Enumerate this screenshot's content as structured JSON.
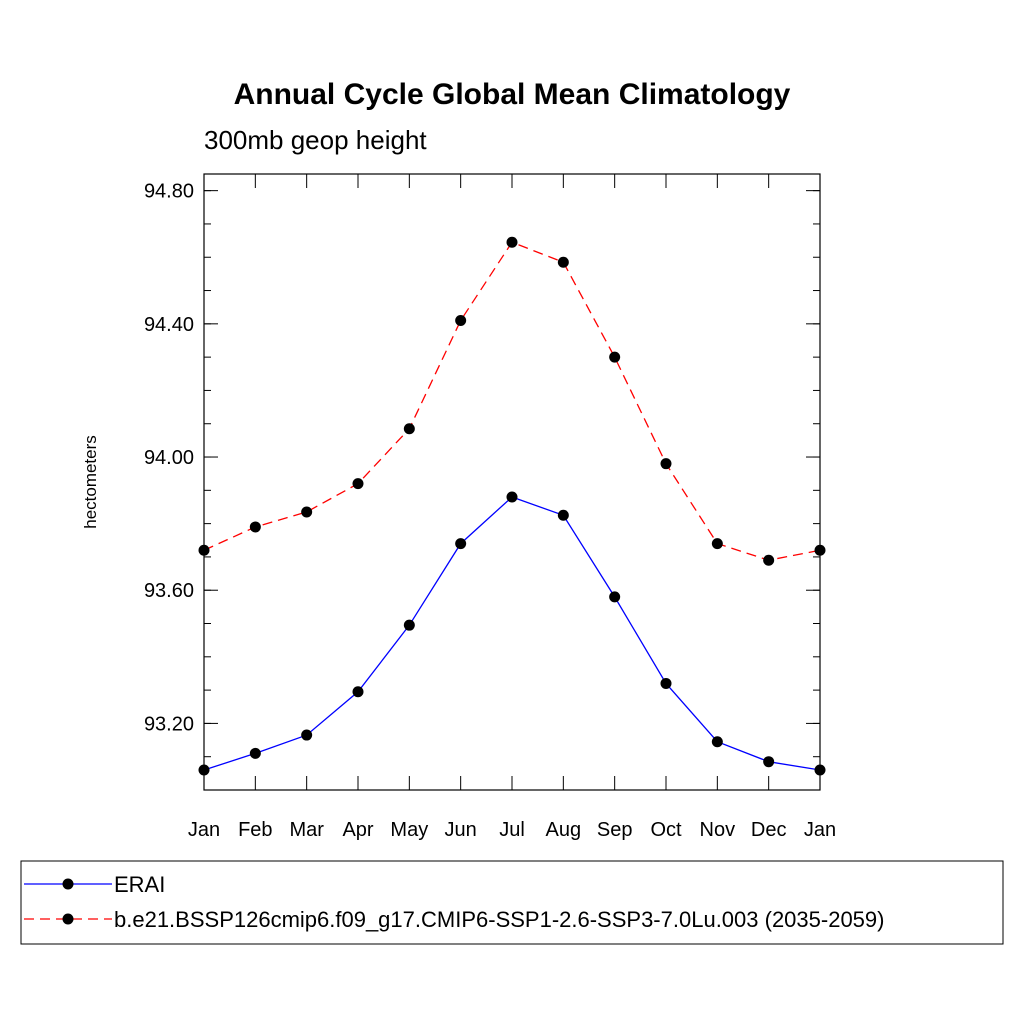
{
  "chart_data": {
    "type": "line",
    "title": "Annual Cycle Global Mean Climatology",
    "subtitle": "300mb geop height",
    "xlabel": "",
    "ylabel": "hectometers",
    "categories": [
      "Jan",
      "Feb",
      "Mar",
      "Apr",
      "May",
      "Jun",
      "Jul",
      "Aug",
      "Sep",
      "Oct",
      "Nov",
      "Dec",
      "Jan"
    ],
    "ylim": [
      93.0,
      94.85
    ],
    "yticks": [
      "93.20",
      "93.60",
      "94.00",
      "94.40",
      "94.80"
    ],
    "grid": false,
    "legend_position": "bottom",
    "series": [
      {
        "name": "ERAI",
        "color": "#0000ff",
        "dash": "solid",
        "marker": "filled-circle",
        "values": [
          93.06,
          93.11,
          93.165,
          93.295,
          93.495,
          93.74,
          93.88,
          93.825,
          93.58,
          93.32,
          93.145,
          93.085,
          93.06
        ]
      },
      {
        "name": "b.e21.BSSP126cmip6.f09_g17.CMIP6-SSP1-2.6-SSP3-7.0Lu.003 (2035-2059)",
        "color": "#ff0000",
        "dash": "dashed",
        "marker": "filled-circle",
        "values": [
          93.72,
          93.79,
          93.835,
          93.92,
          94.085,
          94.41,
          94.645,
          94.585,
          94.3,
          93.98,
          93.74,
          93.69,
          93.72
        ]
      }
    ]
  }
}
